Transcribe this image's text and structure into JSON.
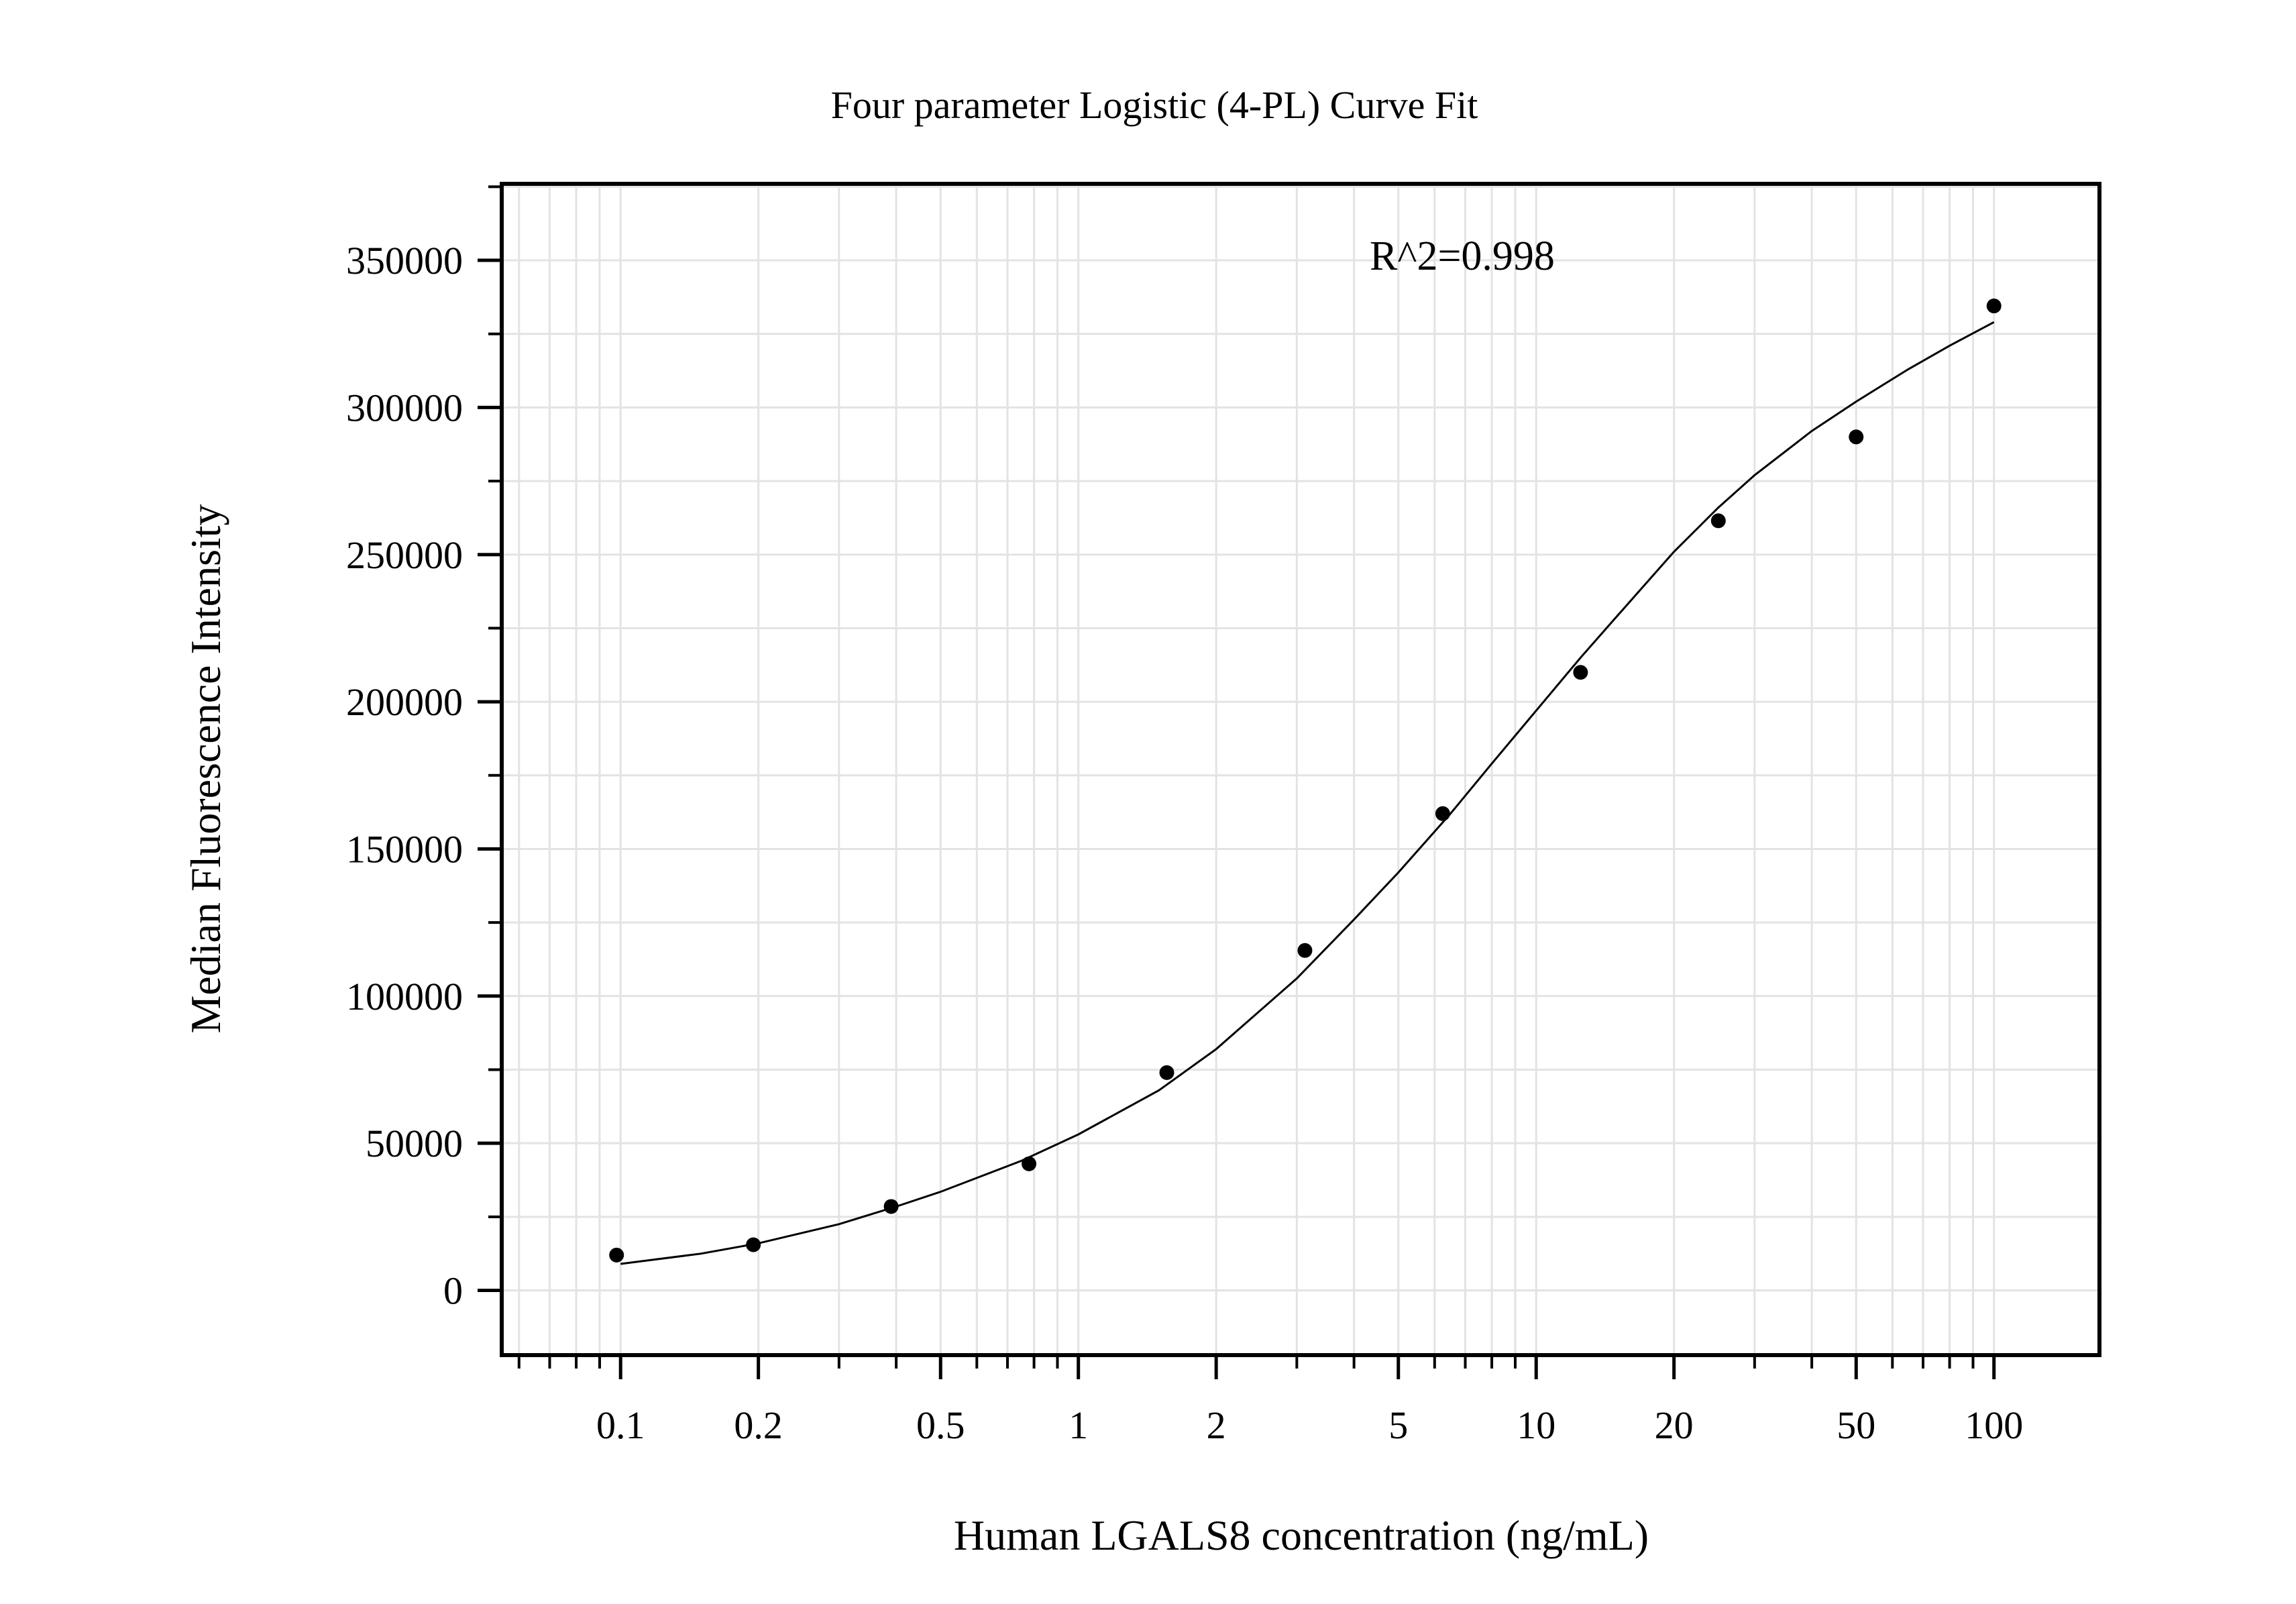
{
  "chart_data": {
    "type": "scatter",
    "title": "Four parameter Logistic (4-PL) Curve Fit",
    "xlabel": "Human LGALS8 concentration (ng/mL)",
    "ylabel": "Median Fluorescence Intensity",
    "x_scale": "log",
    "xlim": [
      0.055,
      170
    ],
    "ylim": [
      -22000,
      376000
    ],
    "grid": true,
    "legend": "none",
    "annotation": "R^2=0.998",
    "x_ticks": [
      0.1,
      0.2,
      0.5,
      1,
      2,
      5,
      10,
      20,
      50,
      100
    ],
    "x_tick_labels": [
      "0.1",
      "0.2",
      "0.5",
      "1",
      "2",
      "5",
      "10",
      "20",
      "50",
      "100"
    ],
    "y_ticks": [
      0,
      50000,
      100000,
      150000,
      200000,
      250000,
      300000,
      350000
    ],
    "y_tick_labels": [
      "0",
      "50000",
      "100000",
      "150000",
      "200000",
      "250000",
      "300000",
      "350000"
    ],
    "points": {
      "x": [
        0.098,
        0.195,
        0.39,
        0.78,
        1.56,
        3.125,
        6.25,
        12.5,
        25,
        50,
        100
      ],
      "y": [
        12000,
        15500,
        28500,
        43000,
        74000,
        115500,
        162000,
        210000,
        261500,
        290000,
        334500
      ]
    },
    "fit": {
      "model": "4PL",
      "x": [
        0.1,
        0.15,
        0.2,
        0.3,
        0.4,
        0.5,
        0.75,
        1,
        1.5,
        2,
        3,
        4,
        5,
        6.5,
        8,
        10,
        12.5,
        15,
        20,
        25,
        30,
        40,
        50,
        65,
        80,
        100
      ],
      "y": [
        9000,
        12500,
        16000,
        22500,
        28500,
        33500,
        44000,
        53000,
        68000,
        82000,
        106000,
        126000,
        142000,
        162000,
        179000,
        197000,
        215000,
        229000,
        251000,
        266000,
        277000,
        292000,
        302000,
        313000,
        321000,
        329000
      ]
    },
    "colors": {
      "points": "#000000",
      "fit": "#000000",
      "grid": "#e3e3e3",
      "frame": "#000000"
    }
  }
}
